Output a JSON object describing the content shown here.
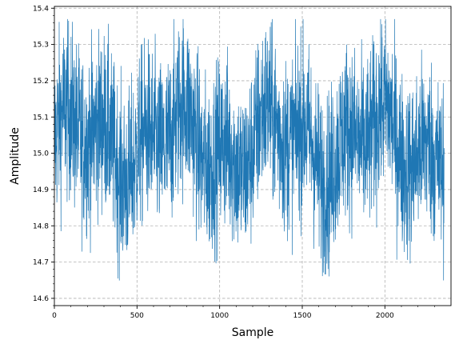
{
  "chart_data": {
    "type": "line",
    "title": "",
    "xlabel": "Sample",
    "ylabel": "Amplitude",
    "xlim": [
      0,
      2400
    ],
    "ylim": [
      14.58,
      15.405
    ],
    "x_ticks": [
      0,
      500,
      1000,
      1500,
      2000
    ],
    "x_tick_labels": [
      "0",
      "500",
      "1000",
      "1500",
      "2000"
    ],
    "y_ticks": [
      14.6,
      14.7,
      14.8,
      14.9,
      15.0,
      15.1,
      15.2,
      15.3,
      15.4
    ],
    "y_tick_labels": [
      "14.6",
      "14.7",
      "14.8",
      "14.9",
      "15.0",
      "15.1",
      "15.2",
      "15.3",
      "15.4"
    ],
    "grid": true,
    "minor_ticks": true,
    "series": [
      {
        "color": "#1f77b4",
        "n_points": 2360,
        "approx_mean": 15.03,
        "approx_min": 14.62,
        "approx_max": 15.37
      }
    ]
  }
}
